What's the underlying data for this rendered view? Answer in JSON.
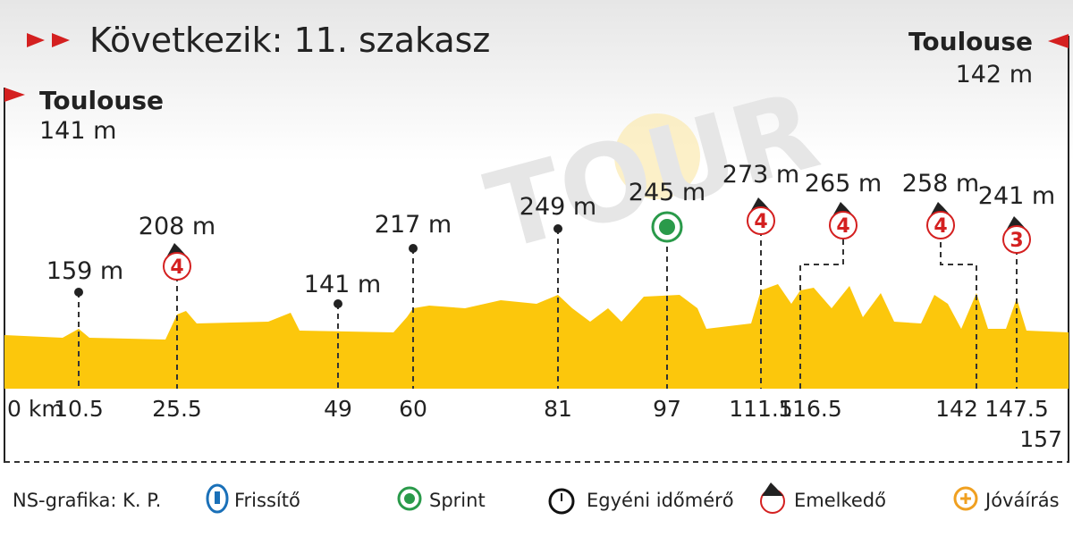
{
  "header": {
    "title": "Következik: 11. szakasz"
  },
  "start": {
    "name": "Toulouse",
    "elevation": "141 m"
  },
  "finish": {
    "name": "Toulouse",
    "elevation": "142 m"
  },
  "km_start": "0 km",
  "km_end": "157",
  "points": [
    {
      "km": "10.5",
      "elevation": "159 m"
    },
    {
      "km": "25.5",
      "elevation": "208 m",
      "category": "4"
    },
    {
      "km": "49",
      "elevation": "141 m"
    },
    {
      "km": "60",
      "elevation": "217 m"
    },
    {
      "km": "81",
      "elevation": "249 m"
    },
    {
      "km": "97",
      "elevation": "245 m"
    },
    {
      "km": "111.5",
      "elevation": "273 m",
      "category": "4"
    },
    {
      "km": "116.5",
      "elevation": "265 m",
      "category": "4"
    },
    {
      "km": "142",
      "elevation": "258 m",
      "category": "4"
    },
    {
      "km": "147.5",
      "elevation": "241 m",
      "category": "3"
    }
  ],
  "legend": {
    "credit": "NS-grafika: K. P.",
    "items": [
      "Frissítő",
      "Sprint",
      "Egyéni időmérő",
      "Emelkedő",
      "Jóváírás"
    ]
  }
}
